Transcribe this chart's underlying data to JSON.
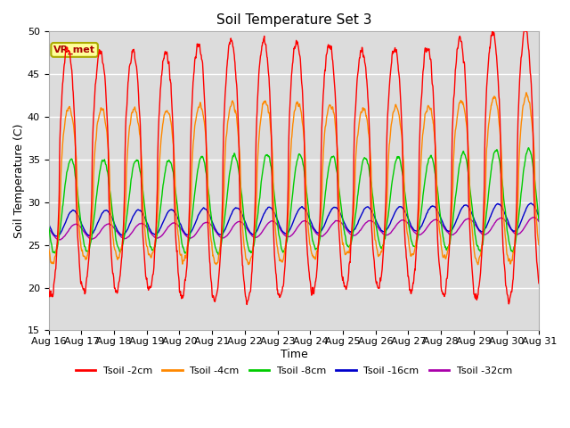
{
  "title": "Soil Temperature Set 3",
  "xlabel": "Time",
  "ylabel": "Soil Temperature (C)",
  "ylim": [
    15,
    50
  ],
  "n_days": 15,
  "pts_per_day": 96,
  "annotation_label": "VR_met",
  "annotation_box_color": "#FFFF99",
  "annotation_border_color": "#AAAA00",
  "annotation_text_color": "#AA0000",
  "bg_color": "#DCDCDC",
  "fig_bg_color": "#FFFFFF",
  "grid_color": "#FFFFFF",
  "series": [
    {
      "label": "Tsoil -2cm",
      "color": "#FF0000"
    },
    {
      "label": "Tsoil -4cm",
      "color": "#FF8800"
    },
    {
      "label": "Tsoil -8cm",
      "color": "#00CC00"
    },
    {
      "label": "Tsoil -16cm",
      "color": "#0000CC"
    },
    {
      "label": "Tsoil -32cm",
      "color": "#AA00AA"
    }
  ],
  "xtick_labels": [
    "Aug 16",
    "Aug 17",
    "Aug 18",
    "Aug 19",
    "Aug 20",
    "Aug 21",
    "Aug 22",
    "Aug 23",
    "Aug 24",
    "Aug 25",
    "Aug 26",
    "Aug 27",
    "Aug 28",
    "Aug 29",
    "Aug 30",
    "Aug 31"
  ],
  "ytick_vals": [
    15,
    20,
    25,
    30,
    35,
    40,
    45,
    50
  ],
  "amp_2cm_base": 14.0,
  "amp_4cm_base": 9.0,
  "amp_8cm_base": 5.0,
  "amp_16cm_base": 1.2,
  "amp_32cm_base": 0.7,
  "base_temp": 27.0,
  "phase_2cm": 0.58,
  "phase_4cm": 0.62,
  "phase_8cm": 0.68,
  "phase_16cm": 0.75,
  "phase_32cm": 0.83
}
